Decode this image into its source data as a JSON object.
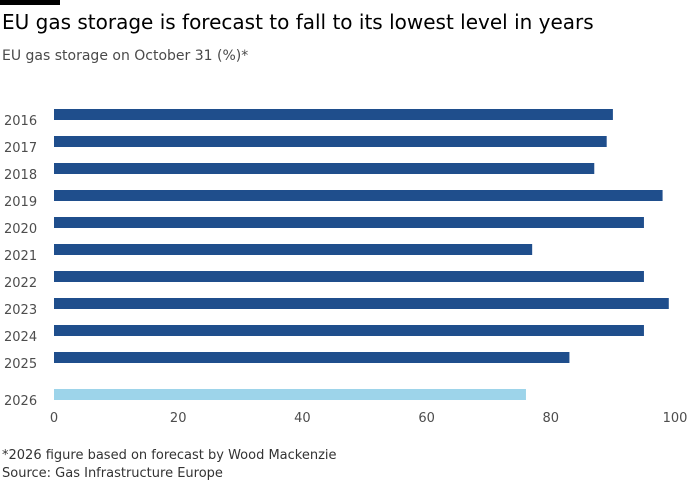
{
  "header": {
    "title": "EU gas storage is forecast to fall to its lowest level in years",
    "subtitle": "EU gas storage on October 31 (%)*"
  },
  "footer": {
    "note": "*2026 figure based on forecast by Wood Mackenzie",
    "source": "Source: Gas Infrastructure Europe"
  },
  "colors": {
    "actual": "#1f4e8c",
    "forecast": "#9dd4ea"
  },
  "chart_data": {
    "type": "bar",
    "orientation": "horizontal",
    "title": "EU gas storage is forecast to fall to its lowest level in years",
    "subtitle": "EU gas storage on October 31 (%)*",
    "categories": [
      "2016",
      "2017",
      "2018",
      "2019",
      "2020",
      "2021",
      "2022",
      "2023",
      "2024",
      "2025",
      "2026"
    ],
    "values": [
      90,
      89,
      87,
      98,
      95,
      77,
      95,
      99,
      95,
      83,
      76
    ],
    "forecast_categories": [
      "2026"
    ],
    "xlim": [
      0,
      100
    ],
    "xticks": [
      0,
      20,
      40,
      60,
      80,
      100
    ],
    "grid": false,
    "legend": "none"
  }
}
